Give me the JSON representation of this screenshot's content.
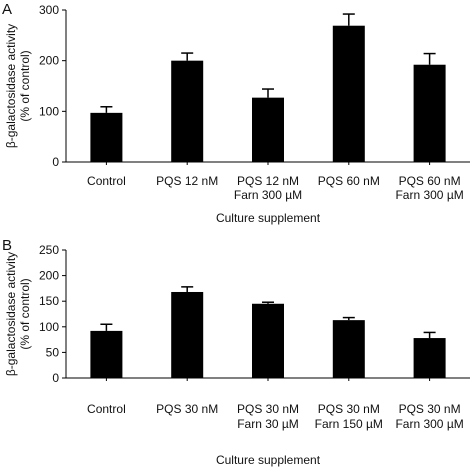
{
  "chart_data": [
    {
      "panel_label": "A",
      "type": "bar",
      "categories": [
        {
          "line1": "Control",
          "line2": ""
        },
        {
          "line1": "PQS 12 nM",
          "line2": ""
        },
        {
          "line1": "PQS 12 nM",
          "line2": "Farn 300 µM"
        },
        {
          "line1": "PQS 60 nM",
          "line2": ""
        },
        {
          "line1": "PQS 60 nM",
          "line2": "Farn 300 µM"
        }
      ],
      "values": [
        97,
        200,
        127,
        269,
        192
      ],
      "errors": [
        12,
        15,
        17,
        23,
        22
      ],
      "ylim": [
        0,
        300
      ],
      "yticks": [
        "0",
        "100",
        "200",
        "300"
      ],
      "ylabel": {
        "line1": "β-galactosidase activity",
        "line2": "(% of control)"
      },
      "xlabel": "Culture supplement",
      "bar_color": "#000000"
    },
    {
      "panel_label": "B",
      "type": "bar",
      "categories": [
        {
          "line1": "Control",
          "line2": ""
        },
        {
          "line1": "PQS 30 nM",
          "line2": ""
        },
        {
          "line1": "PQS 30 nM",
          "line2": "Farn 30 µM"
        },
        {
          "line1": "PQS 30 nM",
          "line2": "Farn 150 µM"
        },
        {
          "line1": "PQS 30 nM",
          "line2": "Farn 300 µM"
        }
      ],
      "values": [
        92,
        168,
        145,
        113,
        78
      ],
      "errors": [
        13,
        10,
        3,
        5,
        11
      ],
      "ylim": [
        0,
        250
      ],
      "yticks": [
        "0",
        "50",
        "100",
        "150",
        "200",
        "250"
      ],
      "ylabel": {
        "line1": "β-galactosidase activity",
        "line2": "(% of control)"
      },
      "xlabel": "Culture supplement",
      "bar_color": "#000000"
    }
  ]
}
